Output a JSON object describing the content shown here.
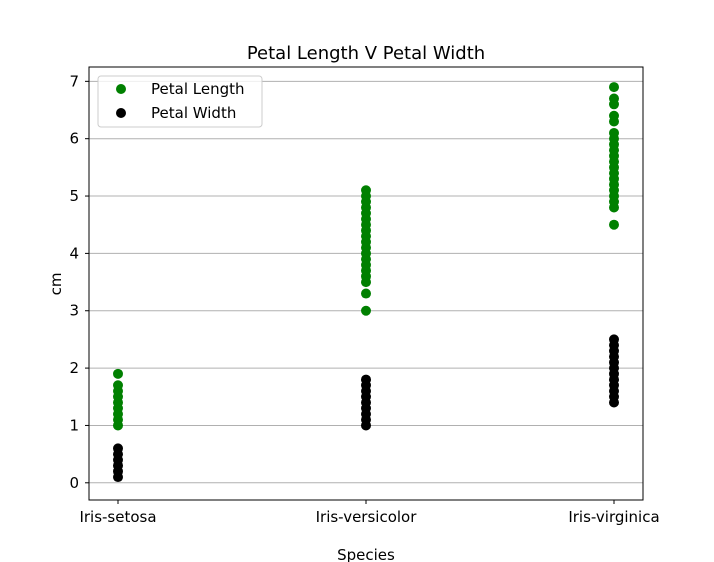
{
  "chart_data": {
    "type": "scatter",
    "title": "Petal Length V Petal Width",
    "xlabel": "Species",
    "ylabel": "cm",
    "categories": [
      "Iris-setosa",
      "Iris-versicolor",
      "Iris-virginica"
    ],
    "ylim": [
      -0.3,
      7.25
    ],
    "yticks": [
      0,
      1,
      2,
      3,
      4,
      5,
      6,
      7
    ],
    "grid": "horizontal",
    "legend_position": "top-left",
    "series": [
      {
        "name": "Petal Length",
        "color": "#008000",
        "points": [
          {
            "x": "Iris-setosa",
            "y": [
              1.0,
              1.1,
              1.2,
              1.3,
              1.4,
              1.5,
              1.6,
              1.7,
              1.9
            ]
          },
          {
            "x": "Iris-versicolor",
            "y": [
              3.0,
              3.3,
              3.5,
              3.6,
              3.7,
              3.8,
              3.9,
              4.0,
              4.1,
              4.2,
              4.3,
              4.4,
              4.5,
              4.6,
              4.7,
              4.8,
              4.9,
              5.0,
              5.1
            ]
          },
          {
            "x": "Iris-virginica",
            "y": [
              4.5,
              4.8,
              4.9,
              5.0,
              5.1,
              5.2,
              5.3,
              5.4,
              5.5,
              5.6,
              5.7,
              5.8,
              5.9,
              6.0,
              6.1,
              6.3,
              6.4,
              6.6,
              6.7,
              6.9
            ]
          }
        ]
      },
      {
        "name": "Petal Width",
        "color": "#000000",
        "points": [
          {
            "x": "Iris-setosa",
            "y": [
              0.1,
              0.2,
              0.3,
              0.4,
              0.5,
              0.6
            ]
          },
          {
            "x": "Iris-versicolor",
            "y": [
              1.0,
              1.1,
              1.2,
              1.3,
              1.4,
              1.5,
              1.6,
              1.7,
              1.8
            ]
          },
          {
            "x": "Iris-virginica",
            "y": [
              1.4,
              1.5,
              1.6,
              1.7,
              1.8,
              1.9,
              2.0,
              2.1,
              2.2,
              2.3,
              2.4,
              2.5
            ]
          }
        ]
      }
    ]
  }
}
